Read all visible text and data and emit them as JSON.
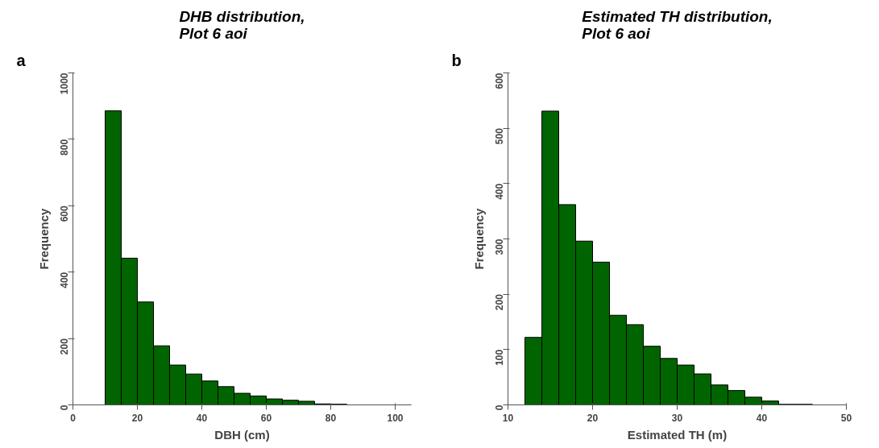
{
  "chart_data": [
    {
      "type": "histogram",
      "title": "DHB distribution,\nPlot 6 aoi",
      "xlabel": "DBH (cm)",
      "ylabel": "Frequency",
      "annotations": [
        "a"
      ],
      "color": "#006400",
      "bins": [
        10,
        15,
        20,
        25,
        30,
        35,
        40,
        45,
        50,
        55,
        60,
        65,
        70,
        75,
        80,
        85,
        90,
        95,
        100,
        105
      ],
      "values": [
        886,
        442,
        310,
        178,
        120,
        93,
        72,
        55,
        35,
        27,
        18,
        14,
        11,
        3,
        2,
        0,
        0,
        0,
        0
      ],
      "xlim": [
        0,
        105
      ],
      "xticks": [
        0,
        20,
        40,
        60,
        80,
        100
      ],
      "ylim": [
        0,
        1000
      ],
      "yticks": [
        0,
        200,
        400,
        600,
        800,
        1000
      ],
      "grid": false
    },
    {
      "type": "histogram",
      "title": "Estimated TH distribution,\nPlot 6 aoi",
      "xlabel": "Estimated TH (m)",
      "ylabel": "Frequency",
      "annotations": [
        "b"
      ],
      "color": "#006400",
      "bins": [
        12,
        14,
        16,
        18,
        20,
        22,
        24,
        26,
        28,
        30,
        32,
        34,
        36,
        38,
        40,
        42,
        44,
        46
      ],
      "values": [
        122,
        531,
        362,
        296,
        258,
        162,
        145,
        106,
        84,
        72,
        56,
        36,
        26,
        14,
        7,
        1,
        1
      ],
      "xlim": [
        10,
        50
      ],
      "xticks": [
        10,
        20,
        30,
        40,
        50
      ],
      "ylim": [
        0,
        600
      ],
      "yticks": [
        0,
        100,
        200,
        300,
        400,
        500,
        600
      ],
      "grid": false
    }
  ]
}
